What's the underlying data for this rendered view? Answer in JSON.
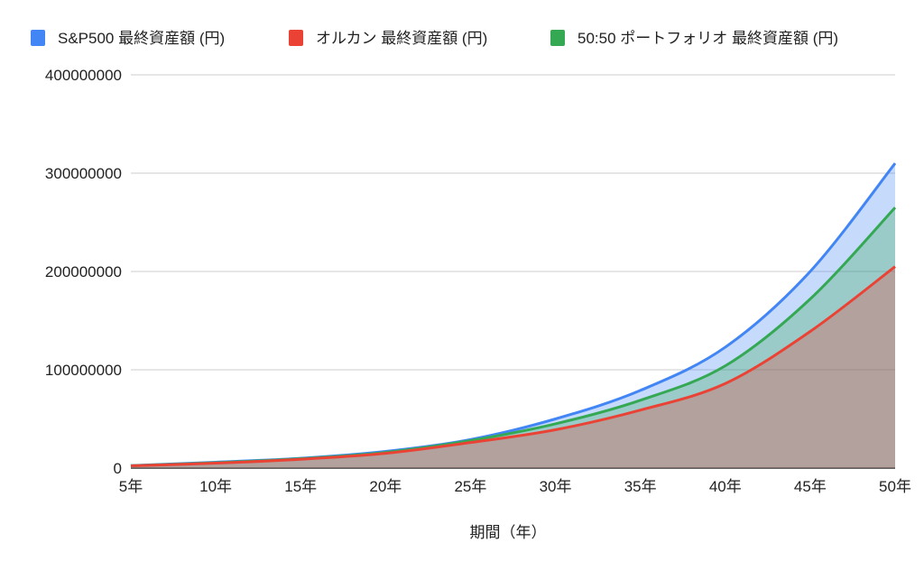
{
  "chart_data": {
    "type": "area",
    "title": "",
    "xlabel": "期間（年）",
    "ylabel": "",
    "categories": [
      "5年",
      "10年",
      "15年",
      "20年",
      "25年",
      "30年",
      "35年",
      "40年",
      "45年",
      "50年"
    ],
    "ylim": [
      0,
      400000000
    ],
    "yticks": [
      "0",
      "100000000",
      "200000000",
      "300000000",
      "400000000"
    ],
    "ytick_values": [
      0,
      100000000,
      200000000,
      300000000,
      400000000
    ],
    "grid": true,
    "legend_position": "top",
    "series": [
      {
        "name": "S&P500 最終資産額 (円)",
        "color": "#4285f4",
        "values": [
          2500000,
          6000000,
          10000000,
          17000000,
          29000000,
          50000000,
          79000000,
          123000000,
          200000000,
          310000000
        ]
      },
      {
        "name": "オルカン 最終資産額 (円)",
        "color": "#ea4335",
        "values": [
          2300000,
          5000000,
          9000000,
          15000000,
          26000000,
          39000000,
          59000000,
          86000000,
          139000000,
          205000000
        ]
      },
      {
        "name": "50:50 ポートフォリオ 最終資産額 (円)",
        "color": "#34a853",
        "values": [
          2400000,
          5500000,
          9500000,
          16000000,
          28000000,
          45000000,
          69000000,
          104000000,
          172000000,
          265000000
        ]
      }
    ]
  }
}
